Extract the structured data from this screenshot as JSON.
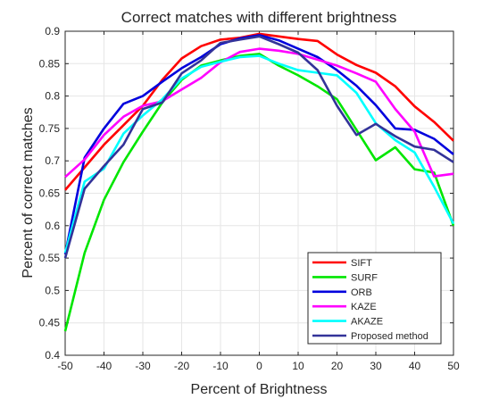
{
  "chart_data": {
    "type": "line",
    "title": "Correct matches with different brightness",
    "xlabel": "Percent of Brightness",
    "ylabel": "Percent of correct matches",
    "xlim": [
      -50,
      50
    ],
    "ylim": [
      0.4,
      0.9
    ],
    "xticks": [
      -50,
      -40,
      -30,
      -20,
      -10,
      0,
      10,
      20,
      30,
      40,
      50
    ],
    "yticks": [
      0.4,
      0.45,
      0.5,
      0.55,
      0.6,
      0.65,
      0.7,
      0.75,
      0.8,
      0.85,
      0.9
    ],
    "grid": true,
    "legend_position": "bottom-right",
    "x": [
      -50,
      -45,
      -40,
      -35,
      -30,
      -25,
      -20,
      -15,
      -10,
      -5,
      0,
      5,
      10,
      15,
      20,
      25,
      30,
      35,
      40,
      45,
      50
    ],
    "series": [
      {
        "name": "SIFT",
        "color": "#ff0000",
        "values": [
          0.655,
          0.69,
          0.725,
          0.755,
          0.785,
          0.825,
          0.858,
          0.877,
          0.887,
          0.89,
          0.896,
          0.892,
          0.888,
          0.885,
          0.864,
          0.848,
          0.836,
          0.815,
          0.784,
          0.76,
          0.731
        ]
      },
      {
        "name": "SURF",
        "color": "#00e600",
        "values": [
          0.437,
          0.558,
          0.64,
          0.698,
          0.745,
          0.79,
          0.825,
          0.847,
          0.855,
          0.862,
          0.865,
          0.847,
          0.832,
          0.815,
          0.795,
          0.748,
          0.701,
          0.721,
          0.687,
          0.682,
          0.6
        ]
      },
      {
        "name": "ORB",
        "color": "#0000dd",
        "values": [
          0.556,
          0.705,
          0.75,
          0.788,
          0.8,
          0.822,
          0.843,
          0.86,
          0.88,
          0.889,
          0.894,
          0.886,
          0.873,
          0.86,
          0.84,
          0.816,
          0.786,
          0.75,
          0.748,
          0.734,
          0.71
        ]
      },
      {
        "name": "KAZE",
        "color": "#ff00ff",
        "values": [
          0.675,
          0.702,
          0.74,
          0.768,
          0.785,
          0.792,
          0.81,
          0.828,
          0.852,
          0.868,
          0.873,
          0.87,
          0.865,
          0.856,
          0.847,
          0.835,
          0.822,
          0.78,
          0.745,
          0.676,
          0.68
        ]
      },
      {
        "name": "AKAZE",
        "color": "#00ffff",
        "values": [
          0.558,
          0.668,
          0.688,
          0.742,
          0.77,
          0.795,
          0.827,
          0.845,
          0.853,
          0.86,
          0.862,
          0.85,
          0.84,
          0.836,
          0.832,
          0.805,
          0.758,
          0.732,
          0.713,
          0.66,
          0.603
        ]
      },
      {
        "name": "Proposed method",
        "color": "#333399",
        "values": [
          0.55,
          0.657,
          0.692,
          0.725,
          0.78,
          0.79,
          0.835,
          0.855,
          0.882,
          0.887,
          0.892,
          0.88,
          0.867,
          0.84,
          0.785,
          0.74,
          0.757,
          0.738,
          0.722,
          0.717,
          0.698
        ]
      }
    ]
  }
}
